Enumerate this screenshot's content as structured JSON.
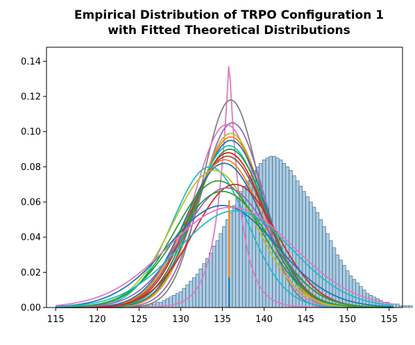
{
  "chart_data": {
    "type": "bar",
    "title_lines": [
      "Empirical Distribution of TRPO Configuration 1",
      "with Fitted Theoretical Distributions"
    ],
    "xlabel": "",
    "ylabel": "",
    "xlim": [
      113.9,
      156.6
    ],
    "ylim": [
      0,
      0.148
    ],
    "x_ticks": [
      115,
      120,
      125,
      130,
      135,
      140,
      145,
      150,
      155
    ],
    "x_tick_labels": [
      "115",
      "120",
      "125",
      "130",
      "135",
      "140",
      "145",
      "150",
      "155"
    ],
    "y_ticks": [
      0,
      0.02,
      0.04,
      0.06,
      0.08,
      0.1,
      0.12,
      0.14
    ],
    "y_tick_labels": [
      "0.00",
      "0.02",
      "0.04",
      "0.06",
      "0.08",
      "0.10",
      "0.12",
      "0.14"
    ],
    "grid": false,
    "legend": "none",
    "histogram": {
      "bin_start": 115.0,
      "bin_width": 0.4,
      "fill_color": "#a8cce4",
      "edge_color": "#2a3f5c",
      "densities": [
        0.001,
        0.001,
        0.001,
        0.001,
        0.001,
        0.001,
        0.001,
        0.001,
        0.001,
        0.001,
        0.001,
        0.001,
        0.001,
        0.001,
        0.001,
        0.001,
        0.001,
        0.001,
        0.001,
        0.001,
        0.001,
        0.001,
        0.001,
        0.001,
        0.001,
        0.001,
        0.001,
        0.001,
        0.002,
        0.002,
        0.003,
        0.003,
        0.004,
        0.005,
        0.006,
        0.007,
        0.008,
        0.009,
        0.011,
        0.013,
        0.015,
        0.017,
        0.019,
        0.022,
        0.025,
        0.028,
        0.031,
        0.035,
        0.038,
        0.042,
        0.046,
        0.05,
        0.054,
        0.058,
        0.062,
        0.066,
        0.069,
        0.072,
        0.075,
        0.078,
        0.08,
        0.082,
        0.084,
        0.085,
        0.086,
        0.086,
        0.085,
        0.084,
        0.082,
        0.08,
        0.078,
        0.075,
        0.072,
        0.069,
        0.066,
        0.063,
        0.06,
        0.057,
        0.054,
        0.05,
        0.046,
        0.042,
        0.038,
        0.034,
        0.03,
        0.027,
        0.024,
        0.021,
        0.018,
        0.016,
        0.014,
        0.012,
        0.01,
        0.008,
        0.007,
        0.006,
        0.005,
        0.004,
        0.003,
        0.003,
        0.002,
        0.002,
        0.002,
        0.001,
        0.001,
        0.001,
        0.001
      ]
    },
    "fitted_curves": [
      {
        "color": "#e377c2",
        "mu": 135.8,
        "sigma": 1.5,
        "peak": 0.141,
        "shape": "laplace"
      },
      {
        "color": "#7f7f7f",
        "mu": 136.0,
        "sigma": 3.4,
        "peak": 0.118,
        "shape": "gauss"
      },
      {
        "color": "#9467bd",
        "mu": 136.2,
        "sigma": 3.8,
        "peak": 0.105,
        "shape": "gauss"
      },
      {
        "color": "#e377c2",
        "mu": 135.5,
        "sigma": 3.9,
        "peak": 0.104,
        "shape": "gauss"
      },
      {
        "color": "#bcbd22",
        "mu": 136.0,
        "sigma": 4.0,
        "peak": 0.099,
        "shape": "gauss"
      },
      {
        "color": "#ff7f0e",
        "mu": 136.0,
        "sigma": 4.1,
        "peak": 0.097,
        "shape": "gauss"
      },
      {
        "color": "#1f77b4",
        "mu": 136.0,
        "sigma": 4.2,
        "peak": 0.095,
        "shape": "gauss"
      },
      {
        "color": "#17becf",
        "mu": 135.8,
        "sigma": 4.3,
        "peak": 0.092,
        "shape": "gauss"
      },
      {
        "color": "#2ca02c",
        "mu": 135.9,
        "sigma": 4.4,
        "peak": 0.09,
        "shape": "gauss"
      },
      {
        "color": "#d62728",
        "mu": 135.7,
        "sigma": 4.5,
        "peak": 0.088,
        "shape": "gauss"
      },
      {
        "color": "#8c564b",
        "mu": 135.6,
        "sigma": 4.6,
        "peak": 0.086,
        "shape": "gauss"
      },
      {
        "color": "#ff7f0e",
        "mu": 135.3,
        "sigma": 4.6,
        "peak": 0.084,
        "shape": "gauss"
      },
      {
        "color": "#1f77b4",
        "mu": 135.2,
        "sigma": 4.7,
        "peak": 0.082,
        "shape": "gauss"
      },
      {
        "color": "#17becf",
        "mu": 133.5,
        "sigma": 4.5,
        "peak": 0.08,
        "shape": "gauss"
      },
      {
        "color": "#bcbd22",
        "mu": 134.0,
        "sigma": 5.0,
        "peak": 0.078,
        "shape": "gauss"
      },
      {
        "color": "#2ca02c",
        "mu": 134.5,
        "sigma": 5.2,
        "peak": 0.072,
        "shape": "gauss"
      },
      {
        "color": "#d62728",
        "mu": 136.5,
        "sigma": 5.0,
        "peak": 0.07,
        "shape": "gauss"
      },
      {
        "color": "#9467bd",
        "mu": 135.5,
        "sigma": 5.3,
        "peak": 0.068,
        "shape": "gauss"
      },
      {
        "color": "#2ca02c",
        "mu": 135.0,
        "sigma": 5.6,
        "peak": 0.066,
        "shape": "gauss"
      },
      {
        "color": "#1f77b4",
        "mu": 135.0,
        "sigma": 6.5,
        "peak": 0.058,
        "shape": "gauss"
      },
      {
        "color": "#e377c2",
        "mu": 136.0,
        "sigma": 7.5,
        "peak": 0.057,
        "shape": "gauss"
      },
      {
        "color": "#17becf",
        "mu": 136.5,
        "sigma": 6.8,
        "peak": 0.055,
        "shape": "gauss"
      }
    ],
    "vertical_spikes": [
      {
        "x": 135.8,
        "y_top": 0.061,
        "color": "#ff7f0e"
      },
      {
        "x": 135.8,
        "y_top": 0.017,
        "color": "#1f77b4"
      }
    ]
  }
}
